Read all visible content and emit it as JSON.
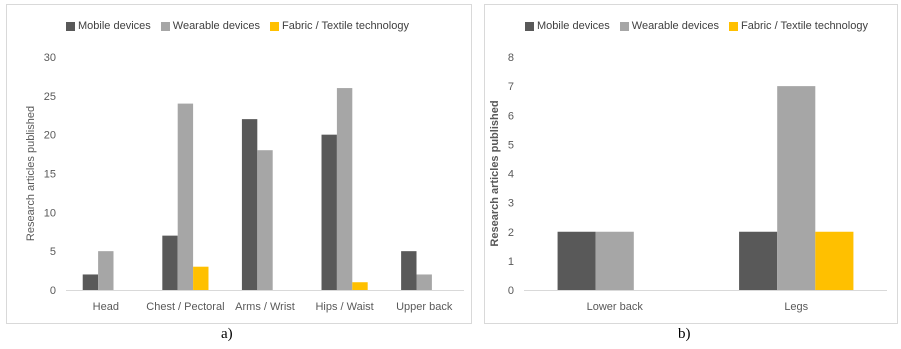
{
  "chart_data": [
    {
      "type": "bar",
      "caption": "a)",
      "ylabel": "Research articles published",
      "xlabel": "",
      "ylim": [
        0,
        30
      ],
      "yticks": [
        0,
        5,
        10,
        15,
        20,
        25,
        30
      ],
      "grid": false,
      "legend": "top",
      "categories": [
        "Head",
        "Chest / Pectoral",
        "Arms / Wrist",
        "Hips / Waist",
        "Upper back"
      ],
      "series": [
        {
          "name": "Mobile devices",
          "color": "#595959",
          "values": [
            2,
            7,
            22,
            20,
            5
          ]
        },
        {
          "name": "Wearable devices",
          "color": "#a6a6a6",
          "values": [
            5,
            24,
            18,
            26,
            2
          ]
        },
        {
          "name": "Fabric / Textile technology",
          "color": "#ffc000",
          "values": [
            0,
            3,
            0,
            1,
            0
          ]
        }
      ]
    },
    {
      "type": "bar",
      "caption": "b)",
      "ylabel": "Research articles published",
      "xlabel": "",
      "ylim": [
        0,
        8
      ],
      "yticks": [
        0,
        1,
        2,
        3,
        4,
        5,
        6,
        7,
        8
      ],
      "grid": false,
      "legend": "top",
      "categories": [
        "Lower back",
        "Legs"
      ],
      "series": [
        {
          "name": "Mobile devices",
          "color": "#595959",
          "values": [
            2,
            2
          ]
        },
        {
          "name": "Wearable devices",
          "color": "#a6a6a6",
          "values": [
            2,
            7
          ]
        },
        {
          "name": "Fabric / Textile technology",
          "color": "#ffc000",
          "values": [
            0,
            2
          ]
        }
      ]
    }
  ]
}
